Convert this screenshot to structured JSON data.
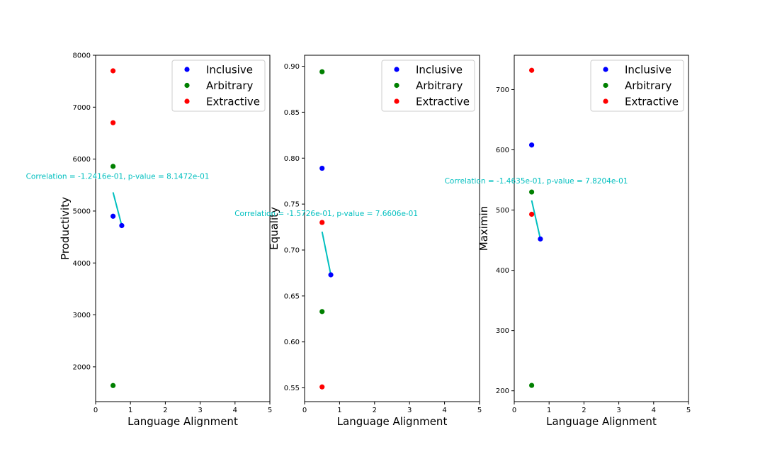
{
  "chart_data": [
    {
      "type": "scatter",
      "xlabel": "Language Alignment",
      "ylabel": "Productivity",
      "xlim": [
        0,
        5
      ],
      "ylim": [
        1330,
        8000
      ],
      "xticks": [
        "0",
        "1",
        "2",
        "3",
        "4",
        "5"
      ],
      "yticks": [
        "2000",
        "3000",
        "4000",
        "5000",
        "6000",
        "7000",
        "8000"
      ],
      "ytick_values": [
        2000,
        3000,
        4000,
        5000,
        6000,
        7000,
        8000
      ],
      "legend": {
        "placement": "top-right",
        "entries": [
          "Inclusive",
          "Arbitrary",
          "Extractive"
        ]
      },
      "series": [
        {
          "name": "Inclusive",
          "color": "#0000FF",
          "points": [
            [
              0.5,
              4900
            ],
            [
              0.75,
              4720
            ]
          ]
        },
        {
          "name": "Arbitrary",
          "color": "#008000",
          "points": [
            [
              0.5,
              5860
            ],
            [
              0.5,
              1640
            ]
          ]
        },
        {
          "name": "Extractive",
          "color": "#FF0000",
          "points": [
            [
              0.5,
              7700
            ],
            [
              0.5,
              6700
            ]
          ]
        }
      ],
      "fit_line": {
        "color": "#00BFBF",
        "from": [
          0.5,
          5360
        ],
        "to": [
          0.75,
          4720
        ]
      },
      "annotation": {
        "text": "Correlation = -1.2416e-01, p-value = 8.1472e-01",
        "x": -2.0,
        "y": 5620
      }
    },
    {
      "type": "scatter",
      "xlabel": "Language Alignment",
      "ylabel": "Equality",
      "xlim": [
        0,
        5
      ],
      "ylim": [
        0.535,
        0.912
      ],
      "xticks": [
        "0",
        "1",
        "2",
        "3",
        "4",
        "5"
      ],
      "yticks": [
        "0.55",
        "0.60",
        "0.65",
        "0.70",
        "0.75",
        "0.80",
        "0.85",
        "0.90"
      ],
      "ytick_values": [
        0.55,
        0.6,
        0.65,
        0.7,
        0.75,
        0.8,
        0.85,
        0.9
      ],
      "legend": {
        "placement": "top-right",
        "entries": [
          "Inclusive",
          "Arbitrary",
          "Extractive"
        ]
      },
      "series": [
        {
          "name": "Inclusive",
          "color": "#0000FF",
          "points": [
            [
              0.5,
              0.789
            ],
            [
              0.75,
              0.673
            ]
          ]
        },
        {
          "name": "Arbitrary",
          "color": "#008000",
          "points": [
            [
              0.5,
              0.894
            ],
            [
              0.5,
              0.633
            ]
          ]
        },
        {
          "name": "Extractive",
          "color": "#FF0000",
          "points": [
            [
              0.5,
              0.73
            ],
            [
              0.5,
              0.551
            ]
          ]
        }
      ],
      "fit_line": {
        "color": "#00BFBF",
        "from": [
          0.5,
          0.72
        ],
        "to": [
          0.75,
          0.673
        ]
      },
      "annotation": {
        "text": "Correlation = -1.5726e-01, p-value = 7.6606e-01",
        "x": -2.0,
        "y": 0.737
      }
    },
    {
      "type": "scatter",
      "xlabel": "Language Alignment",
      "ylabel": "Maximin",
      "xlim": [
        0,
        5
      ],
      "ylim": [
        182,
        757
      ],
      "xticks": [
        "0",
        "1",
        "2",
        "3",
        "4",
        "5"
      ],
      "yticks": [
        "200",
        "300",
        "400",
        "500",
        "600",
        "700"
      ],
      "ytick_values": [
        200,
        300,
        400,
        500,
        600,
        700
      ],
      "legend": {
        "placement": "top-right",
        "entries": [
          "Inclusive",
          "Arbitrary",
          "Extractive"
        ]
      },
      "series": [
        {
          "name": "Inclusive",
          "color": "#0000FF",
          "points": [
            [
              0.5,
              608
            ],
            [
              0.75,
              452
            ]
          ]
        },
        {
          "name": "Arbitrary",
          "color": "#008000",
          "points": [
            [
              0.5,
              530
            ],
            [
              0.5,
              209
            ]
          ]
        },
        {
          "name": "Extractive",
          "color": "#FF0000",
          "points": [
            [
              0.5,
              732
            ],
            [
              0.5,
              493
            ]
          ]
        }
      ],
      "fit_line": {
        "color": "#00BFBF",
        "from": [
          0.5,
          516
        ],
        "to": [
          0.75,
          452
        ]
      },
      "annotation": {
        "text": "Correlation = -1.4635e-01, p-value = 7.8204e-01",
        "x": -2.0,
        "y": 544
      }
    }
  ]
}
